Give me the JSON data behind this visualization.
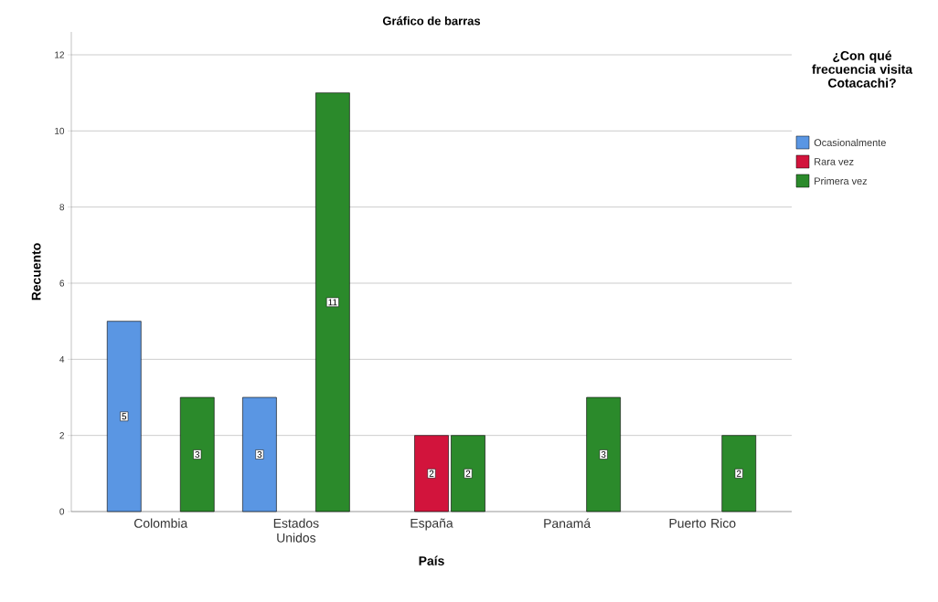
{
  "chart_data": {
    "type": "bar",
    "title": "Gráfico de barras",
    "xlabel": "País",
    "ylabel": "Recuento",
    "legend_title": "¿Con qué frecuencia visita Cotacachi?",
    "categories": [
      "Colombia",
      "Estados Unidos",
      "España",
      "Panamá",
      "Puerto Rico"
    ],
    "series": [
      {
        "name": "Ocasionalmente",
        "color": "#5a96e3",
        "values": [
          5,
          3,
          null,
          null,
          null
        ]
      },
      {
        "name": "Rara vez",
        "color": "#d2143c",
        "values": [
          null,
          null,
          2,
          null,
          null
        ]
      },
      {
        "name": "Primera vez",
        "color": "#2b8a2b",
        "values": [
          3,
          11,
          2,
          3,
          2
        ]
      }
    ],
    "ylim": [
      0,
      12.6
    ],
    "yticks": [
      0,
      2,
      4,
      6,
      8,
      10,
      12
    ],
    "grid": "y",
    "legend": "right",
    "data_labels": true
  }
}
